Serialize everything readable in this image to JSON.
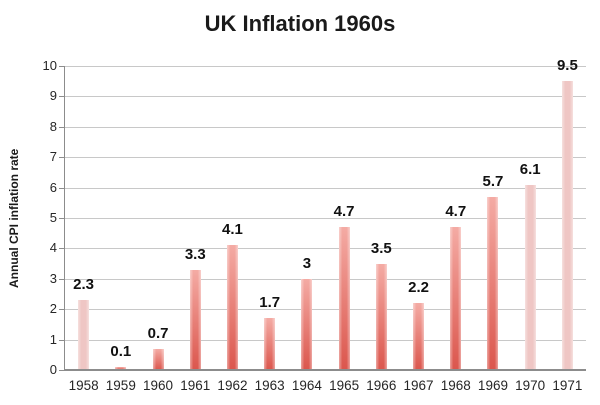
{
  "chart_data": {
    "type": "bar",
    "title": "UK Inflation 1960s",
    "xlabel": "",
    "ylabel": "Annual CPI inflation rate",
    "categories": [
      "1958",
      "1959",
      "1960",
      "1961",
      "1962",
      "1963",
      "1964",
      "1965",
      "1966",
      "1967",
      "1968",
      "1969",
      "1970",
      "1971"
    ],
    "values": [
      2.3,
      0.1,
      0.7,
      3.3,
      4.1,
      1.7,
      3,
      4.7,
      3.5,
      2.2,
      4.7,
      5.7,
      6.1,
      9.5
    ],
    "value_labels": [
      "2.3",
      "0.1",
      "0.7",
      "3.3",
      "4.1",
      "1.7",
      "3",
      "4.7",
      "3.5",
      "2.2",
      "4.7",
      "5.7",
      "6.1",
      "9.5"
    ],
    "ylim": [
      0,
      10
    ],
    "ytick_interval": 1,
    "grid": true,
    "legend": "none",
    "muted_categories": [
      "1958",
      "1970",
      "1971"
    ],
    "colors": {
      "bar_gradient_top": "#F4ABA4",
      "bar_gradient_bottom": "#DB564D",
      "bar_muted": "#EFC6C4",
      "gridline": "#C8C8C8",
      "axis": "#8C8C8C",
      "text": "#1A1A1A"
    }
  }
}
